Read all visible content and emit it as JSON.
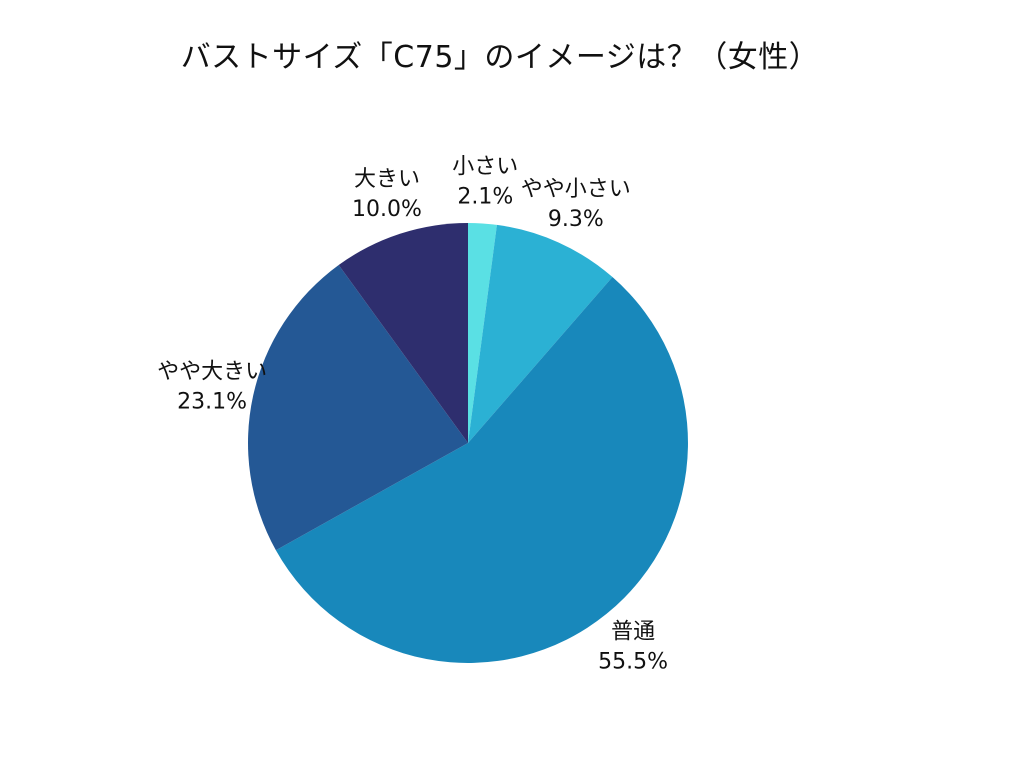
{
  "chart_data": {
    "type": "pie",
    "title": "バストサイズ「C75」のイメージは？（女性）",
    "slices": [
      {
        "label": "小さい",
        "value": 2.1,
        "value_label": "2.1%",
        "color": "#5ae0e4"
      },
      {
        "label": "やや小さい",
        "value": 9.3,
        "value_label": "9.3%",
        "color": "#2bb1d4"
      },
      {
        "label": "普通",
        "value": 55.5,
        "value_label": "55.5%",
        "color": "#1888bb"
      },
      {
        "label": "やや大きい",
        "value": 23.1,
        "value_label": "23.1%",
        "color": "#245895"
      },
      {
        "label": "大きい",
        "value": 10.0,
        "value_label": "10.0%",
        "color": "#2e2e6e"
      }
    ],
    "start_angle": "12 o'clock",
    "direction": "clockwise",
    "legend": "none"
  }
}
